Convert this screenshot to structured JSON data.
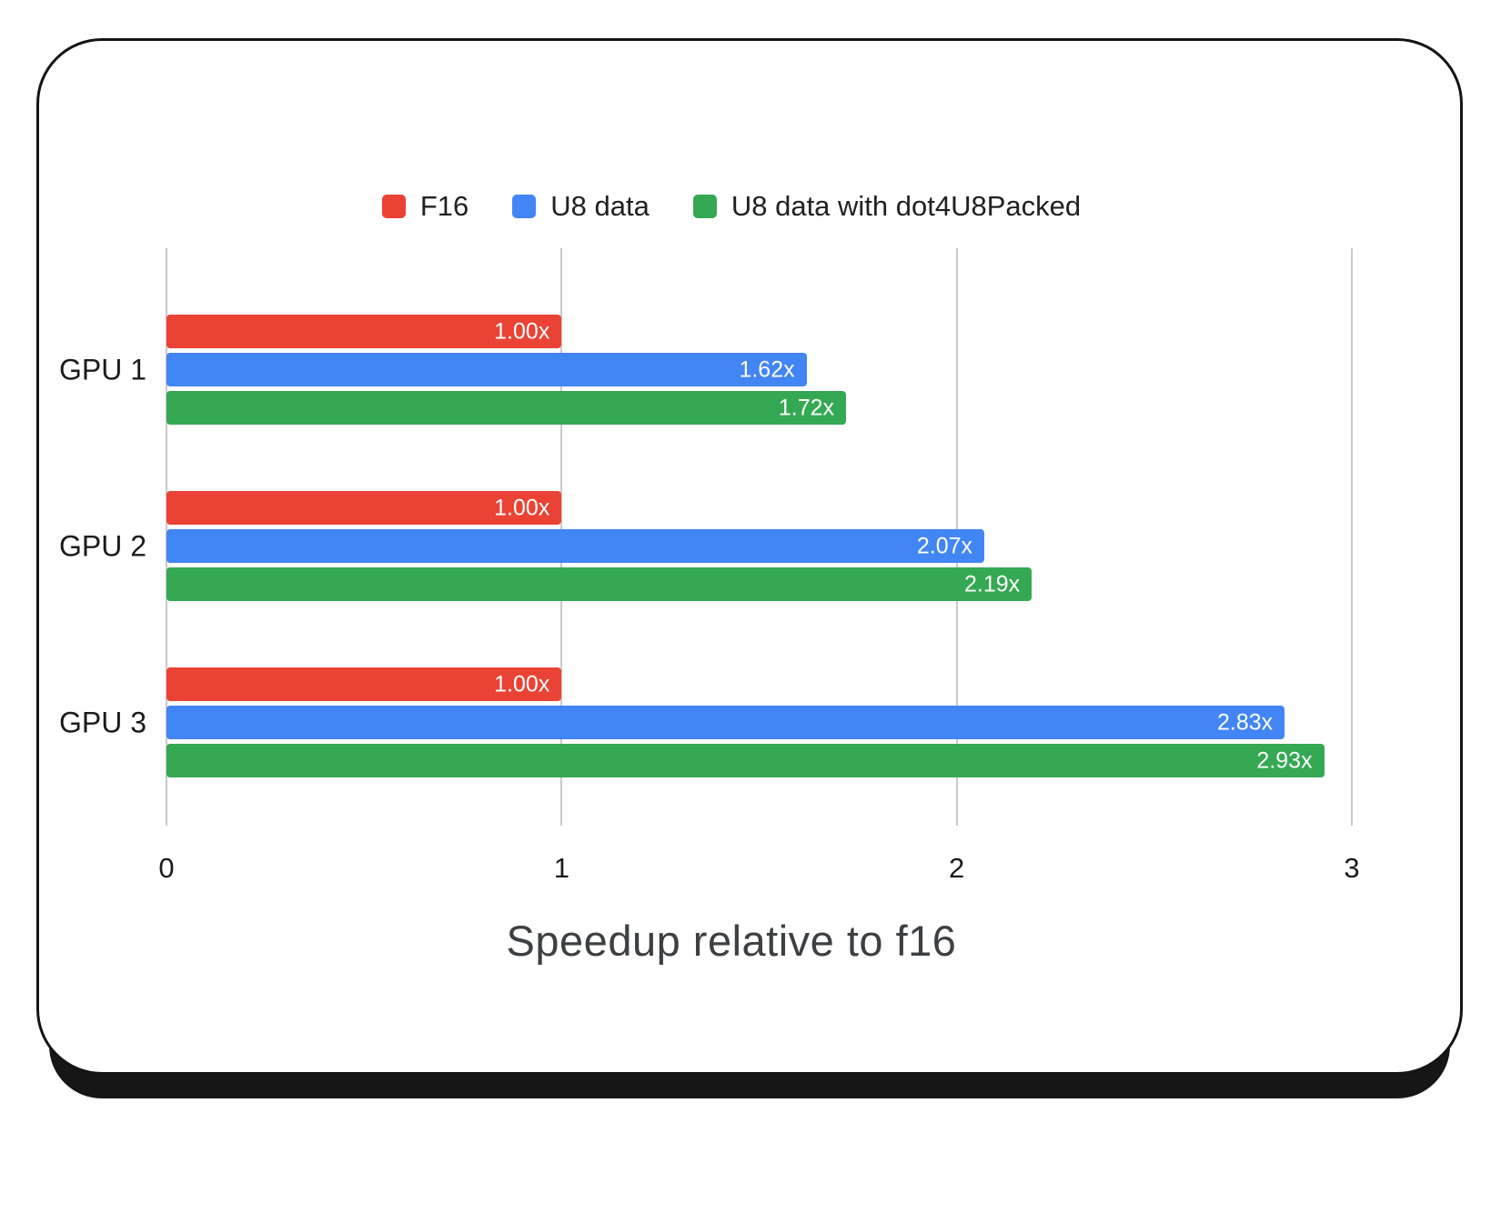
{
  "chart_data": {
    "type": "bar",
    "orientation": "horizontal",
    "title": "Speedup relative to f16",
    "categories": [
      "GPU 1",
      "GPU 2",
      "GPU 3"
    ],
    "series": [
      {
        "name": "F16",
        "color": "#ea4335",
        "values": [
          1.0,
          1.0,
          1.0
        ],
        "labels": [
          "1.00x",
          "1.00x",
          "1.00x"
        ]
      },
      {
        "name": "U8 data",
        "color": "#4285f4",
        "values": [
          1.62,
          2.07,
          2.83
        ],
        "labels": [
          "1.62x",
          "2.07x",
          "2.83x"
        ]
      },
      {
        "name": "U8 data with dot4U8Packed",
        "color": "#34a853",
        "values": [
          1.72,
          2.19,
          2.93
        ],
        "labels": [
          "1.72x",
          "2.19x",
          "2.93x"
        ]
      }
    ],
    "x_axis": {
      "min": 0,
      "max": 3,
      "ticks": [
        0,
        1,
        2,
        3
      ],
      "tick_labels": [
        "0",
        "1",
        "2",
        "3"
      ]
    },
    "legend_position": "top",
    "grid": true,
    "value_labels_inside_bars": true
  },
  "colors": {
    "grid": "#c9c9c9",
    "axis_text": "#1b1b1b",
    "title_text": "#3c4043",
    "value_label_text": "#ffffff",
    "card_border": "#141414",
    "card_shadow": "#161616"
  }
}
